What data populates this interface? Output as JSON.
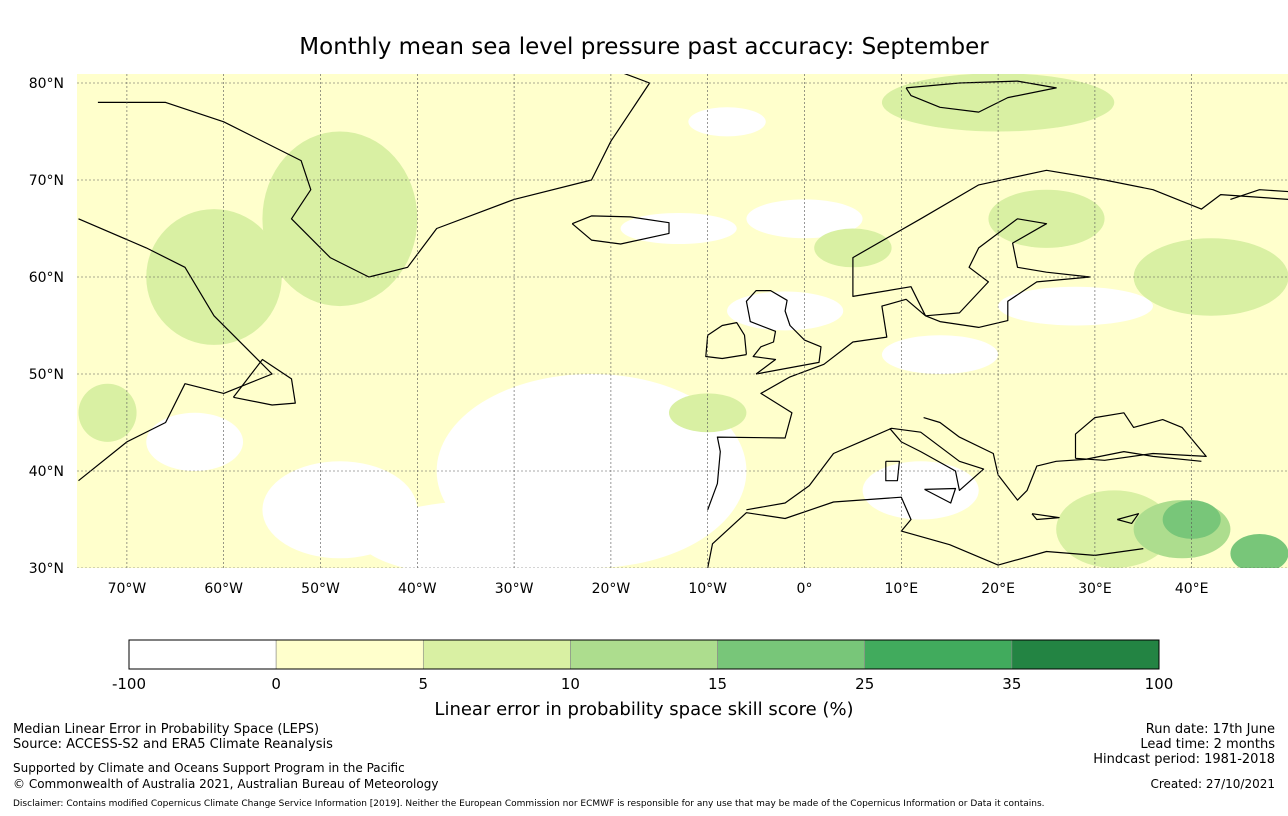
{
  "title": "Monthly mean sea level pressure past accuracy: September",
  "map": {
    "lon_range": [
      -75,
      50
    ],
    "lat_range": [
      30,
      81
    ],
    "lat_ticks": [
      "30°N",
      "40°N",
      "50°N",
      "60°N",
      "70°N",
      "80°N"
    ],
    "lon_ticks": [
      "70°W",
      "60°W",
      "50°W",
      "40°W",
      "30°W",
      "20°W",
      "10°W",
      "0°",
      "10°E",
      "20°E",
      "30°E",
      "40°E"
    ],
    "colors": {
      "c_lt0": "#ffffff",
      "c_0_5": "#ffffcc",
      "c_5_10": "#d9f0a3",
      "c_10_15": "#addd8e",
      "c_15_25": "#78c679",
      "c_25_35": "#41ab5d",
      "c_35_100": "#238443",
      "coast": "#000000",
      "grid": "#555555"
    }
  },
  "colorbar": {
    "boundaries": [
      "-100",
      "0",
      "5",
      "10",
      "15",
      "25",
      "35",
      "100"
    ],
    "colors": [
      "#ffffff",
      "#ffffcc",
      "#d9f0a3",
      "#addd8e",
      "#78c679",
      "#41ab5d",
      "#238443"
    ],
    "label": "Linear error in probability space skill score (%)"
  },
  "footer": {
    "left1": "Median Linear Error in Probability Space (LEPS)",
    "left2": "Source: ACCESS-S2 and ERA5 Climate Reanalysis",
    "left3": "Supported by Climate and Oceans Support Program in the Pacific",
    "left4": "© Commonwealth of Australia 2021, Australian Bureau of Meteorology",
    "right1": "Run date: 17th June",
    "right2": "Lead time: 2 months",
    "right3": "Hindcast period: 1981-2018",
    "right4": "Created: 27/10/2021",
    "disclaimer": "Disclaimer: Contains modified Copernicus Climate Change Service Information [2019]. Neither the European Commission nor ECMWF is responsible for any use that may be made of the Copernicus Information or Data it contains."
  }
}
